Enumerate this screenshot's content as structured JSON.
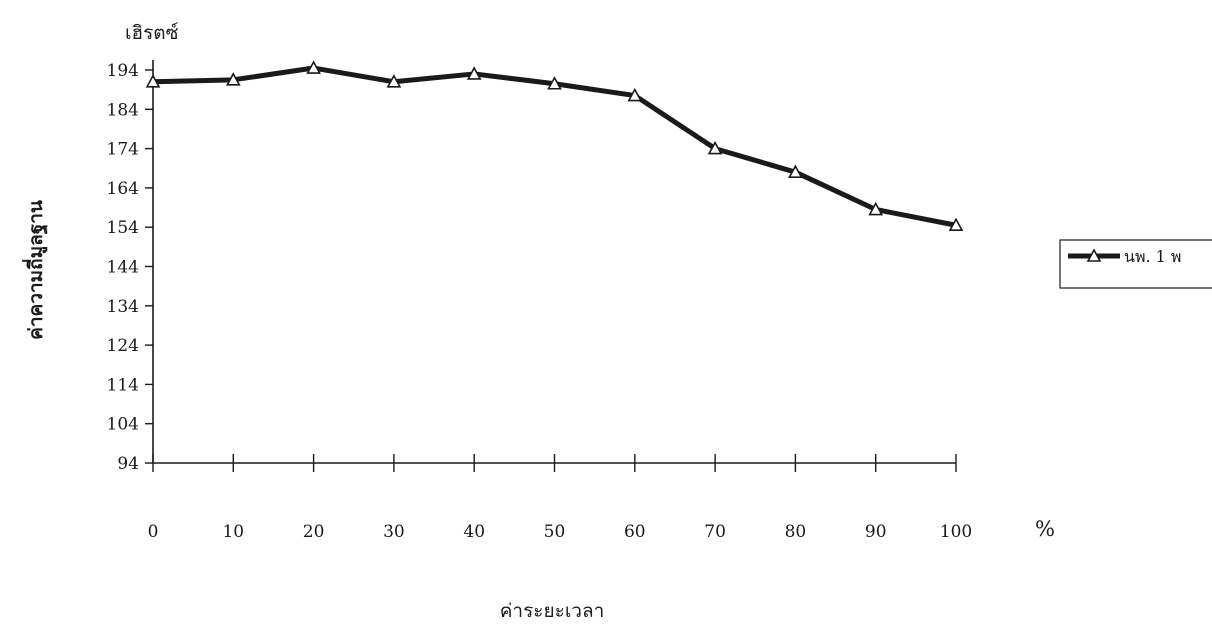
{
  "chart_data": {
    "type": "line",
    "x": [
      0,
      10,
      20,
      30,
      40,
      50,
      60,
      70,
      80,
      90,
      100
    ],
    "series": [
      {
        "name": "นพ. 1 พ",
        "values": [
          191,
          191.5,
          194.5,
          191,
          193,
          190.5,
          187.5,
          174,
          168,
          158.5,
          154.5
        ],
        "color": "#1a1a1a",
        "marker": "triangle-open"
      }
    ],
    "x_ticks": [
      "0",
      "10",
      "20",
      "30",
      "40",
      "50",
      "60",
      "70",
      "80",
      "90",
      "100"
    ],
    "y_ticks": [
      "94",
      "104",
      "114",
      "124",
      "134",
      "144",
      "154",
      "164",
      "174",
      "184",
      "194"
    ],
    "xlim": [
      0,
      100
    ],
    "ylim": [
      94,
      194
    ],
    "xlabel": "ค่าระยะเวลา",
    "ylabel": "ค่าความถี่มูลฐาน",
    "y_unit": "เฮิรตซ์",
    "x_unit": "%",
    "grid": false,
    "legend_position": "right"
  }
}
